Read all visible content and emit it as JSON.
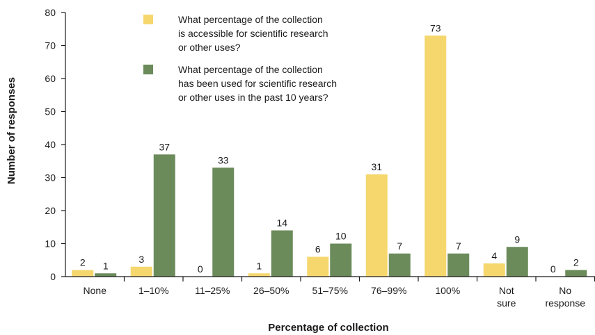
{
  "chart_data": {
    "type": "bar",
    "categories": [
      [
        "None"
      ],
      [
        "1–10%"
      ],
      [
        "11–25%"
      ],
      [
        "26–50%"
      ],
      [
        "51–75%"
      ],
      [
        "76–99%"
      ],
      [
        "100%"
      ],
      [
        "Not",
        "sure"
      ],
      [
        "No",
        "response"
      ]
    ],
    "series": [
      {
        "name": [
          "What percentage of the collection",
          "is accessible for scientific research",
          "or other uses?"
        ],
        "color": "#f5d76e",
        "values": [
          2,
          3,
          0,
          1,
          6,
          31,
          73,
          4,
          0
        ]
      },
      {
        "name": [
          "What percentage of the collection",
          "has been used for scientific research",
          "or other uses in the past 10 years?"
        ],
        "color": "#6b8b5a",
        "values": [
          1,
          37,
          33,
          14,
          10,
          7,
          7,
          9,
          2
        ]
      }
    ],
    "xlabel": "Percentage of collection",
    "ylabel": "Number of responses",
    "ylim": [
      0,
      80
    ],
    "yticks": [
      "0",
      "10",
      "20",
      "30",
      "40",
      "50",
      "60",
      "70",
      "80"
    ],
    "legend_position": "top-center",
    "grid": false
  }
}
